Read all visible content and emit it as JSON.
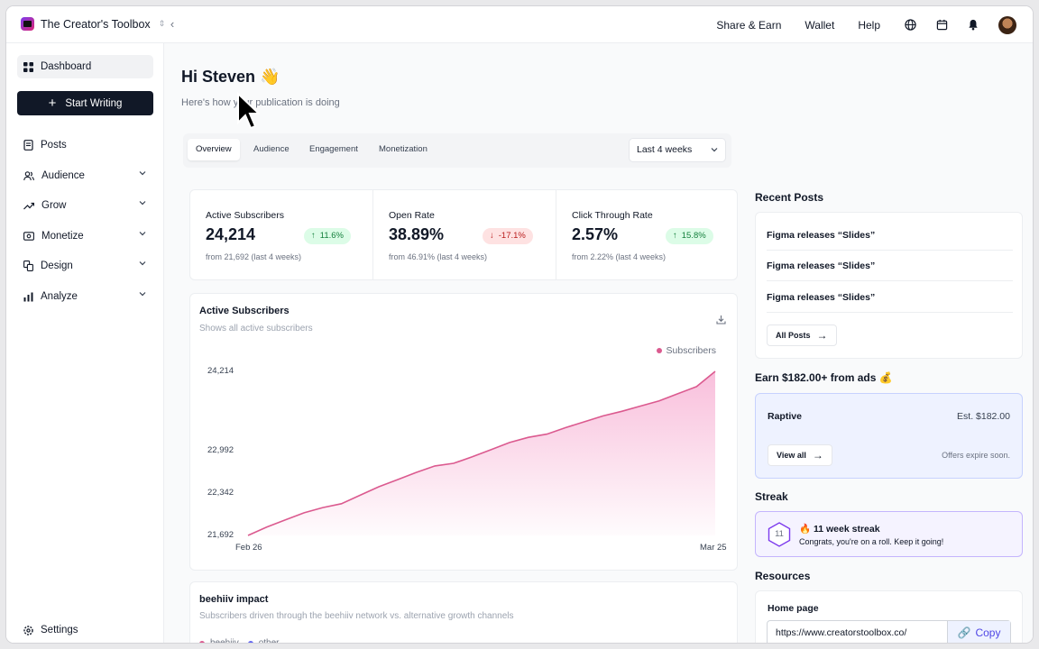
{
  "topbar": {
    "publication": "The Creator's Toolbox",
    "links": [
      "Share & Earn",
      "Wallet",
      "Help"
    ]
  },
  "sidebar": {
    "dashboard": "Dashboard",
    "start_writing": "Start Writing",
    "items": [
      "Posts",
      "Audience",
      "Grow",
      "Monetize",
      "Design",
      "Analyze"
    ],
    "settings": "Settings"
  },
  "main": {
    "greeting": "Hi Steven 👋",
    "subtitle": "Here's how your publication is doing",
    "tabs": [
      "Overview",
      "Audience",
      "Engagement",
      "Monetization"
    ],
    "range": "Last 4 weeks"
  },
  "metrics": [
    {
      "label": "Active Subscribers",
      "value": "24,214",
      "change": "11.6%",
      "direction": "up",
      "from": "from 21,692 (last 4 weeks)"
    },
    {
      "label": "Open Rate",
      "value": "38.89%",
      "change": "-17.1%",
      "direction": "down",
      "from": "from 46.91% (last 4 weeks)"
    },
    {
      "label": "Click Through Rate",
      "value": "2.57%",
      "change": "15.8%",
      "direction": "up",
      "from": "from 2.22% (last 4 weeks)"
    }
  ],
  "chart_data": {
    "type": "area",
    "title": "Active Subscribers",
    "subtitle": "Shows all active subscribers",
    "legend": "Subscribers",
    "color": "#db5a8f",
    "x_labels": [
      "Feb 26",
      "Mar 25"
    ],
    "y_ticks": [
      21692,
      22342,
      22992,
      24214
    ],
    "y_tick_labels": [
      "21,692",
      "22,342",
      "22,992",
      "24,214"
    ],
    "ylim": [
      21692,
      24214
    ],
    "values": [
      21692,
      21820,
      21930,
      22040,
      22120,
      22180,
      22310,
      22440,
      22550,
      22660,
      22760,
      22800,
      22900,
      23010,
      23120,
      23200,
      23250,
      23350,
      23440,
      23530,
      23600,
      23680,
      23760,
      23870,
      23980,
      24214
    ]
  },
  "impact": {
    "title": "beehiiv impact",
    "subtitle": "Subscribers driven through the beehiiv network vs. alternative growth channels",
    "legend": [
      "beehiiv",
      "other"
    ]
  },
  "recent_posts": {
    "title": "Recent Posts",
    "posts": [
      "Figma releases “Slides”",
      "Figma releases “Slides”",
      "Figma releases “Slides”"
    ],
    "all_posts": "All Posts"
  },
  "ads": {
    "title": "Earn $182.00+ from ads 💰",
    "partner": "Raptive",
    "estimate": "Est. $182.00",
    "view_all": "View all",
    "note": "Offers expire soon."
  },
  "streak": {
    "title": "Streak",
    "weeks": "11",
    "headline": "🔥 11 week streak",
    "message": "Congrats, you're on a roll. Keep it going!"
  },
  "resources": {
    "title": "Resources",
    "home_label": "Home page",
    "url": "https://www.creatorstoolbox.co/",
    "copy": "Copy"
  }
}
